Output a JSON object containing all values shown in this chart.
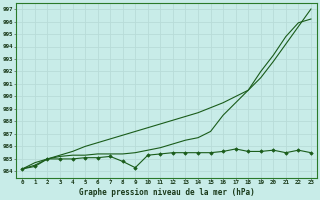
{
  "title": "Graphe pression niveau de la mer (hPa)",
  "bg_color": "#c8ece8",
  "grid_color": "#b8dcd8",
  "line_color": "#1a5c1a",
  "ylim": [
    983.5,
    997.5
  ],
  "xlim": [
    -0.5,
    23.5
  ],
  "yticks": [
    984,
    985,
    986,
    987,
    988,
    989,
    990,
    991,
    992,
    993,
    994,
    995,
    996,
    997
  ],
  "xticks": [
    0,
    1,
    2,
    3,
    4,
    5,
    6,
    7,
    8,
    9,
    10,
    11,
    12,
    13,
    14,
    15,
    16,
    17,
    18,
    19,
    20,
    21,
    22,
    23
  ],
  "series1_x": [
    0,
    1,
    2,
    3,
    4,
    5,
    6,
    7,
    8,
    9,
    10,
    11,
    12,
    13,
    14,
    15,
    16,
    17,
    18,
    19,
    20,
    21,
    22,
    23
  ],
  "series1": [
    984.2,
    984.4,
    985.0,
    985.0,
    985.0,
    985.1,
    985.1,
    985.2,
    984.8,
    984.3,
    985.3,
    985.4,
    985.5,
    985.5,
    985.5,
    985.5,
    985.6,
    985.8,
    985.6,
    985.6,
    985.7,
    985.5,
    985.7,
    985.5
  ],
  "series2": [
    984.2,
    984.5,
    985.0,
    985.2,
    985.3,
    985.3,
    985.4,
    985.4,
    985.4,
    985.5,
    985.7,
    985.9,
    986.2,
    986.5,
    986.7,
    987.2,
    988.5,
    989.5,
    990.5,
    992.0,
    993.3,
    994.8,
    995.9,
    996.2
  ],
  "series3": [
    984.2,
    984.7,
    985.0,
    985.3,
    985.6,
    986.0,
    986.3,
    986.6,
    986.9,
    987.2,
    987.5,
    987.8,
    988.1,
    988.4,
    988.7,
    989.1,
    989.5,
    990.0,
    990.5,
    991.5,
    992.8,
    994.2,
    995.6,
    997.0
  ]
}
